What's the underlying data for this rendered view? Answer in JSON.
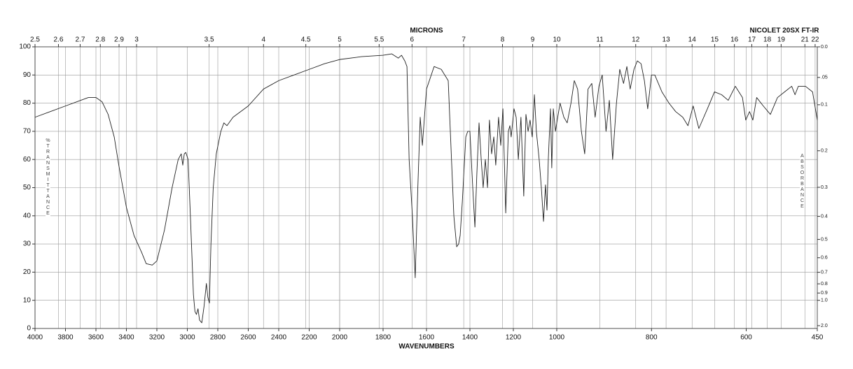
{
  "chart_data": {
    "type": "line",
    "title": "NICOLET 20SX FT-IR",
    "x2_label": "MICRONS",
    "x_label": "WAVENUMBERS",
    "y_label": "%TRANSMITTANCE",
    "y2_label": "ABSORBANCE",
    "color": "#222222",
    "grid": true,
    "x_scale_segments": [
      4000,
      2000,
      1000,
      450
    ],
    "xlim": [
      4000,
      450
    ],
    "ylim": [
      0,
      100
    ],
    "xticks": [
      4000,
      3800,
      3600,
      3400,
      3200,
      3000,
      2800,
      2600,
      2400,
      2200,
      2000,
      1800,
      1600,
      1400,
      1200,
      1000,
      800,
      600,
      450
    ],
    "yticks": [
      0,
      10,
      20,
      30,
      40,
      50,
      60,
      70,
      80,
      90,
      100
    ],
    "x2ticks": [
      2.5,
      2.6,
      2.7,
      2.8,
      2.9,
      3,
      3.5,
      4,
      4.5,
      5,
      5.5,
      6,
      7,
      8,
      9,
      10,
      11,
      12,
      13,
      14,
      15,
      16,
      17,
      18,
      19,
      21,
      22
    ],
    "y2ticks": [
      {
        "value": 0,
        "label": "0.0"
      },
      {
        "value": 0.05,
        "label": ".05"
      },
      0.1,
      0.2,
      0.3,
      0.4,
      0.5,
      0.6,
      0.7,
      0.8,
      0.9,
      {
        "value": 1,
        "label": "1.0"
      },
      {
        "value": 2,
        "label": "2.0"
      }
    ],
    "x": [
      4000,
      3900,
      3800,
      3700,
      3650,
      3600,
      3560,
      3520,
      3480,
      3450,
      3400,
      3350,
      3300,
      3270,
      3230,
      3200,
      3150,
      3100,
      3060,
      3040,
      3030,
      3020,
      3010,
      2995,
      2980,
      2960,
      2950,
      2940,
      2930,
      2920,
      2905,
      2890,
      2875,
      2865,
      2855,
      2845,
      2830,
      2810,
      2780,
      2760,
      2740,
      2700,
      2600,
      2500,
      2400,
      2300,
      2200,
      2100,
      2000,
      1900,
      1800,
      1760,
      1730,
      1715,
      1700,
      1690,
      1680,
      1665,
      1652,
      1640,
      1629,
      1619,
      1600,
      1565,
      1532,
      1500,
      1474,
      1461,
      1452,
      1445,
      1435,
      1419,
      1410,
      1400,
      1387,
      1377,
      1368,
      1358,
      1348,
      1339,
      1329,
      1319,
      1310,
      1300,
      1290,
      1281,
      1268,
      1258,
      1248,
      1235,
      1223,
      1216,
      1210,
      1197,
      1187,
      1177,
      1165,
      1152,
      1142,
      1132,
      1123,
      1113,
      1103,
      1094,
      1081,
      1071,
      1061,
      1052,
      1045,
      1039,
      1029,
      1023,
      1016,
      1006,
      998,
      993,
      985,
      978,
      970,
      963,
      956,
      948,
      941,
      934,
      926,
      919,
      911,
      904,
      896,
      889,
      882,
      874,
      867,
      859,
      852,
      845,
      837,
      830,
      822,
      815,
      808,
      800,
      793,
      778,
      763,
      749,
      734,
      723,
      712,
      700,
      682,
      667,
      652,
      638,
      623,
      608,
      601,
      593,
      586,
      578,
      564,
      549,
      534,
      519,
      504,
      497,
      490,
      475,
      460,
      450
    ],
    "values": [
      75,
      77,
      79,
      81,
      82,
      82,
      80.5,
      76,
      68,
      58,
      43,
      33,
      27,
      23,
      22.5,
      24,
      35,
      50,
      60,
      62,
      58,
      62,
      62.5,
      60,
      40,
      12,
      6,
      5,
      7,
      3,
      2,
      8,
      16,
      11,
      9,
      30,
      50,
      62,
      70,
      73,
      72,
      75,
      79,
      85,
      88,
      90,
      92,
      94,
      95.5,
      96.5,
      97,
      97.5,
      96,
      97,
      95,
      93,
      60,
      40,
      18,
      50,
      75,
      65,
      85,
      93,
      92,
      88,
      40,
      29,
      30,
      33,
      45,
      68,
      70,
      70,
      50,
      36,
      55,
      73,
      60,
      50,
      60,
      50,
      74,
      62,
      68,
      58,
      75,
      65,
      78,
      41,
      70,
      72,
      68,
      78,
      75,
      60,
      75,
      47,
      76,
      70,
      74,
      68,
      83,
      70,
      60,
      50,
      38,
      51,
      42,
      60,
      78,
      57,
      78,
      70,
      75,
      80,
      75,
      73,
      80,
      88,
      85,
      70,
      62,
      85,
      87,
      75,
      86,
      90,
      70,
      81,
      60,
      80,
      92,
      87,
      93,
      85,
      92,
      95,
      94,
      88,
      78,
      90,
      90,
      84,
      80,
      77,
      75,
      72,
      79,
      71,
      78,
      84,
      83,
      81,
      86,
      82,
      74,
      77,
      74,
      82,
      79,
      76,
      82,
      84,
      86,
      83,
      86,
      86,
      84,
      74
    ]
  }
}
